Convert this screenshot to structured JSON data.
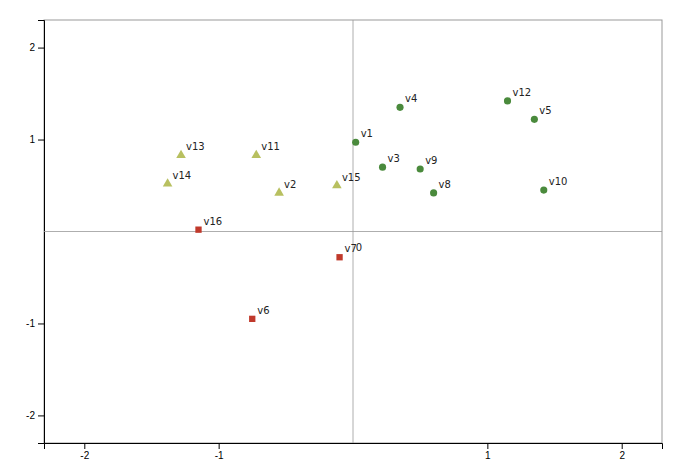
{
  "chart_data": {
    "type": "scatter",
    "series": [
      {
        "color": "#4a8a3c",
        "marker": "circle",
        "labels": [
          "v1",
          "v3",
          "v4",
          "v5",
          "v8",
          "v9",
          "v10",
          "v12"
        ],
        "x": [
          0.02,
          0.22,
          0.35,
          1.35,
          0.6,
          0.5,
          1.42,
          1.15
        ],
        "values": [
          0.97,
          0.7,
          1.35,
          1.22,
          0.42,
          0.68,
          0.45,
          1.42
        ]
      },
      {
        "color": "#b8c060",
        "marker": "triangle",
        "labels": [
          "v2",
          "v11",
          "v13",
          "v14",
          "v15"
        ],
        "x": [
          -0.55,
          -0.72,
          -1.28,
          -1.38,
          -0.12
        ],
        "values": [
          0.42,
          0.83,
          0.83,
          0.52,
          0.5
        ]
      },
      {
        "color": "#c0392b",
        "marker": "square",
        "labels": [
          "v6",
          "v7",
          "v16"
        ],
        "x": [
          -0.75,
          -0.1,
          -1.15
        ],
        "values": [
          -0.95,
          -0.28,
          0.02
        ]
      }
    ],
    "xlim": [
      -2.3,
      2.3
    ],
    "ylim": [
      -2.3,
      2.3
    ],
    "xticks": [
      -2,
      -1,
      1,
      2
    ],
    "yticks": [
      -2,
      -1,
      1,
      2
    ],
    "annotations": [
      {
        "text": "0",
        "x": 0.02,
        "y": -0.12
      }
    ],
    "grid": false
  }
}
